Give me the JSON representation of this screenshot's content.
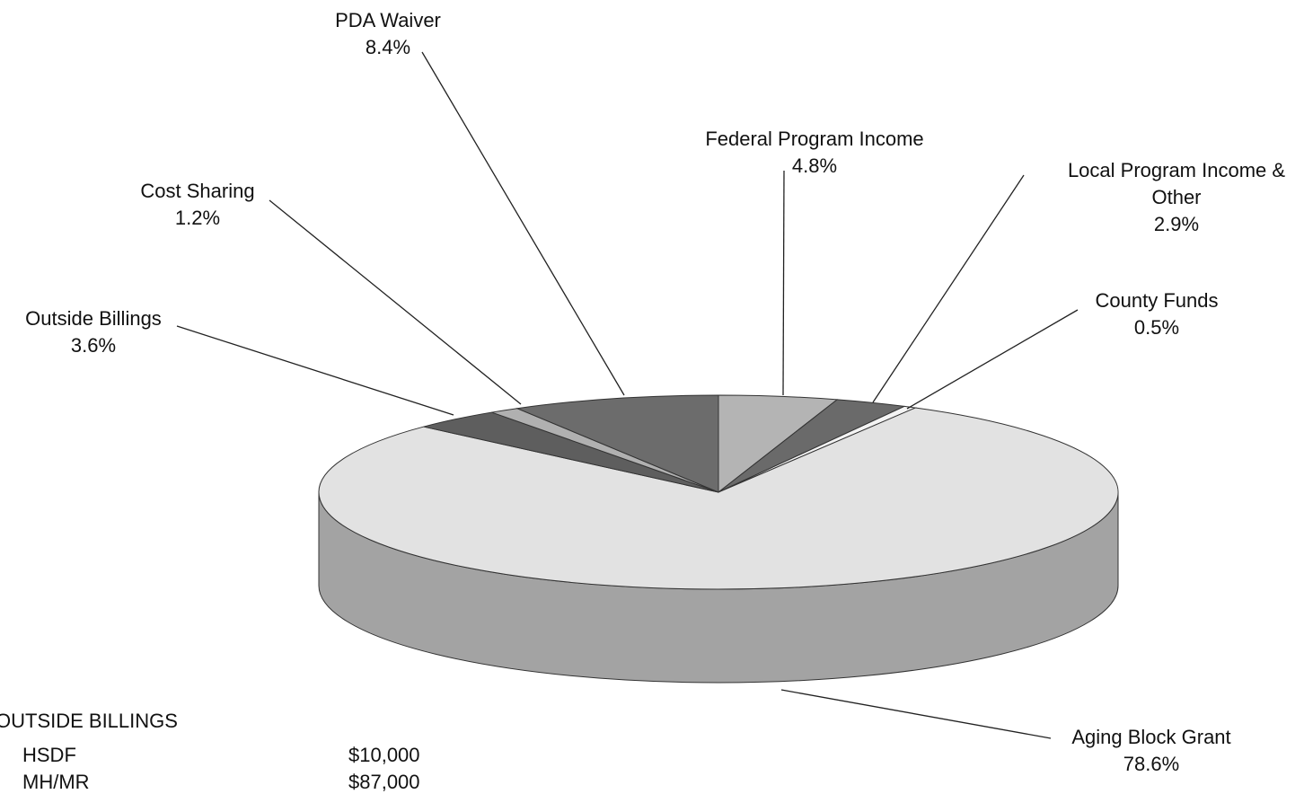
{
  "chart_data": {
    "type": "pie3d",
    "categories": [
      "Federal Program Income",
      "Local Program Income & Other",
      "County Funds",
      "Aging Block Grant",
      "Outside Billings",
      "Cost Sharing",
      "PDA Waiver"
    ],
    "values": [
      4.8,
      2.9,
      0.5,
      78.6,
      3.6,
      1.2,
      8.4
    ],
    "value_labels": [
      "4.8%",
      "2.9%",
      "0.5%",
      "78.6%",
      "3.6%",
      "1.2%",
      "8.4%"
    ],
    "colors": [
      "#b4b4b4",
      "#6a6a6a",
      "#f4f4f4",
      "#e2e2e2",
      "#5e5e5e",
      "#b0b0b0",
      "#6c6c6c"
    ]
  },
  "outside_billings": {
    "title": "OUTSIDE BILLINGS",
    "rows": [
      [
        "HSDF",
        "$10,000"
      ],
      [
        "MH/MR",
        "$87,000"
      ]
    ]
  }
}
